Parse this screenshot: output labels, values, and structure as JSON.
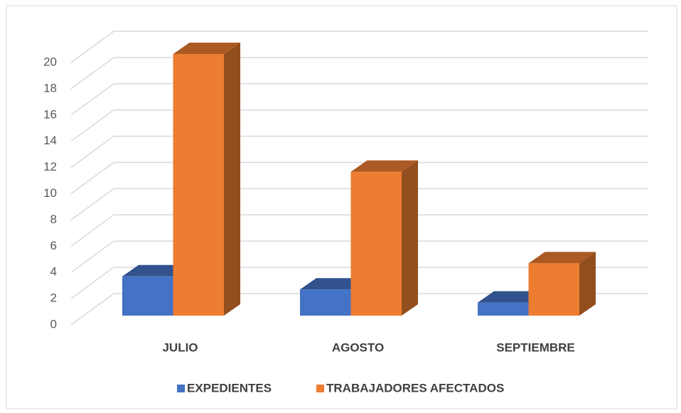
{
  "chart_data": {
    "type": "bar3d",
    "categories": [
      "JULIO",
      "AGOSTO",
      "SEPTIEMBRE"
    ],
    "series": [
      {
        "name": "EXPEDIENTES",
        "color": "#4472c4",
        "values": [
          3,
          2,
          1
        ]
      },
      {
        "name": "TRABAJADORES AFECTADOS",
        "color": "#ed7d31",
        "values": [
          20,
          11,
          4
        ]
      }
    ],
    "ylim": [
      0,
      20
    ],
    "yticks": [
      0,
      2,
      4,
      6,
      8,
      10,
      12,
      14,
      16,
      18,
      20
    ],
    "grid": true,
    "legend": "bottom"
  }
}
